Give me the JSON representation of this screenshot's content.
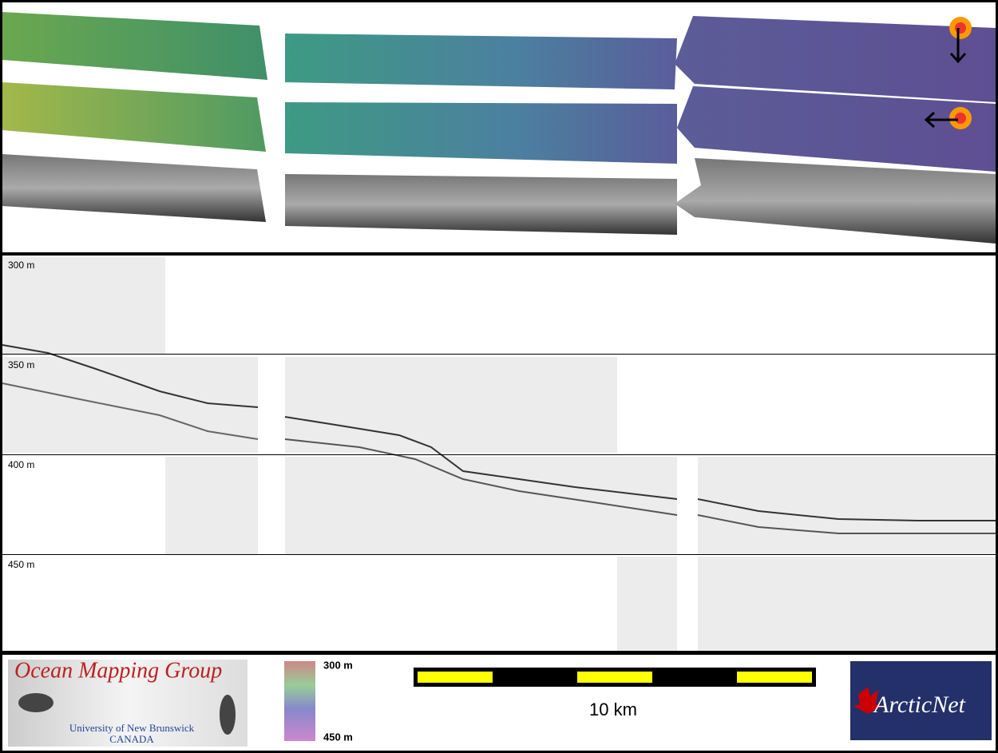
{
  "profile": {
    "depth_labels": [
      "300 m",
      "350 m",
      "400 m",
      "450 m"
    ]
  },
  "footer": {
    "logo_title": "Ocean Mapping Group",
    "logo_university": "University of New Brunswick",
    "logo_country": "CANADA",
    "colorbar_top": "300 m",
    "colorbar_bottom": "450 m",
    "scale_label": "10 km",
    "partner_logo": "ArcticNet"
  }
}
